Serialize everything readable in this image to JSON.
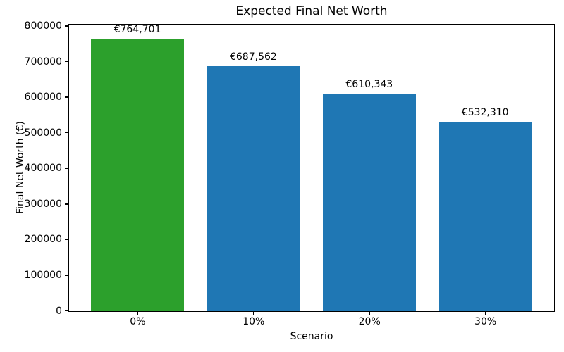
{
  "figure": {
    "background": "#ffffff",
    "text_color": "#000000",
    "spine_color": "#000000"
  },
  "chart_data": {
    "type": "bar",
    "title": "Expected Final Net Worth",
    "xlabel": "Scenario",
    "ylabel": "Final Net Worth (€)",
    "categories": [
      "0%",
      "10%",
      "20%",
      "30%"
    ],
    "values": [
      764701,
      687562,
      610343,
      532310
    ],
    "value_labels": [
      "€764,701",
      "€687,562",
      "€610,343",
      "€532,310"
    ],
    "bar_colors": [
      "#2ca02c",
      "#1f77b4",
      "#1f77b4",
      "#1f77b4"
    ],
    "highlight_color": "#2ca02c",
    "default_bar_color": "#1f77b4",
    "ytick_labels": [
      "0",
      "100000",
      "200000",
      "300000",
      "400000",
      "500000",
      "600000",
      "700000",
      "800000"
    ],
    "ytick_values": [
      0,
      100000,
      200000,
      300000,
      400000,
      500000,
      600000,
      700000,
      800000
    ],
    "ylim": [
      0,
      803000
    ],
    "xlim": [
      -0.59,
      3.59
    ],
    "bar_width": 0.8,
    "grid": false,
    "legend": "none"
  }
}
